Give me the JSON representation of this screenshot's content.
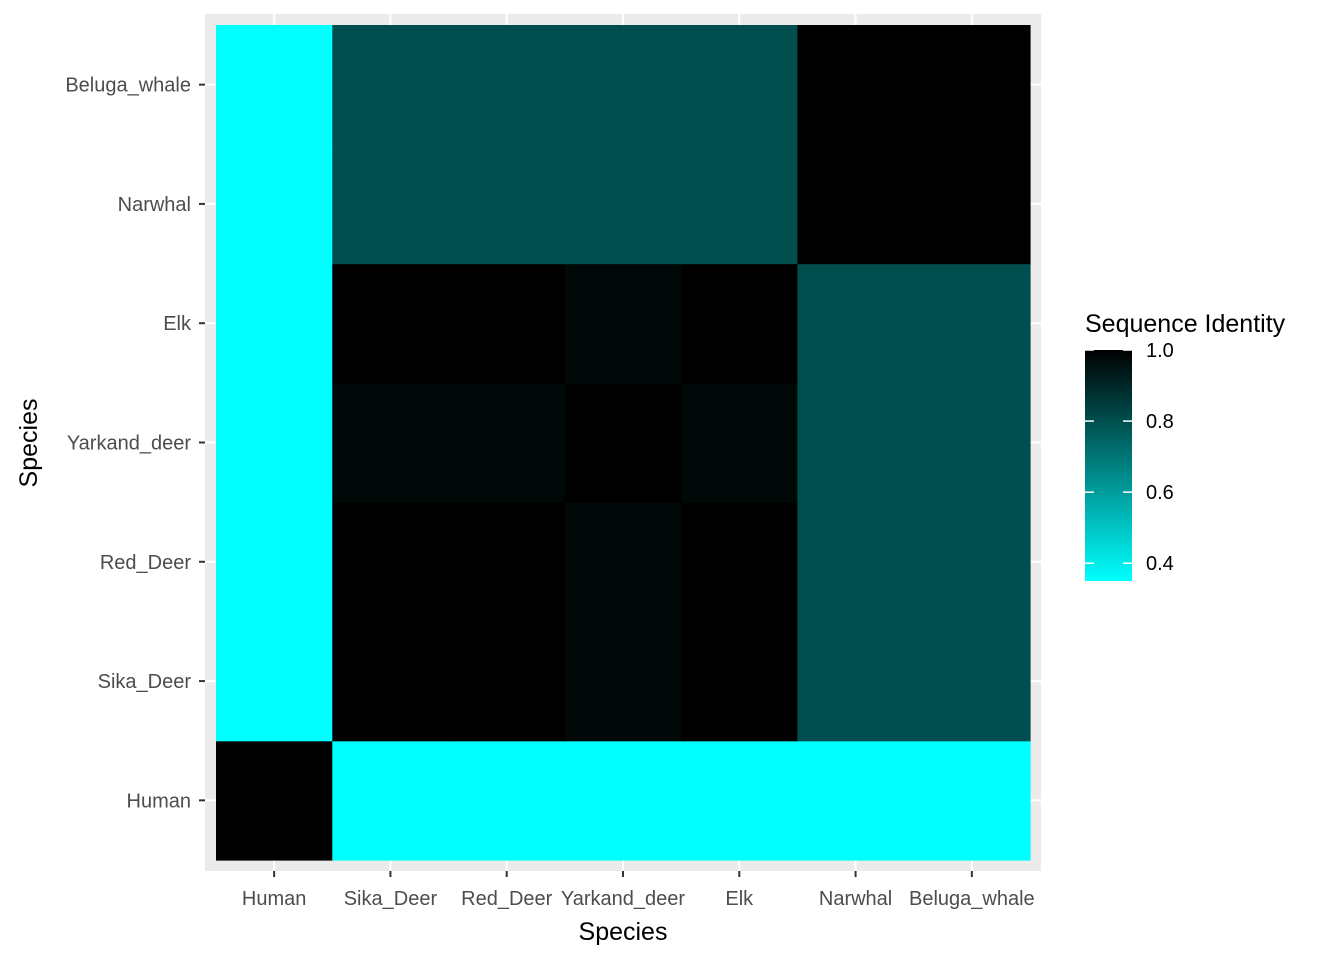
{
  "chart_data": {
    "type": "heatmap",
    "title": "",
    "xlabel": "Species",
    "ylabel": "Species",
    "x_categories": [
      "Human",
      "Sika_Deer",
      "Red_Deer",
      "Yarkand_deer",
      "Elk",
      "Narwhal",
      "Beluga_whale"
    ],
    "y_categories": [
      "Human",
      "Sika_Deer",
      "Red_Deer",
      "Yarkand_deer",
      "Elk",
      "Narwhal",
      "Beluga_whale"
    ],
    "values": [
      [
        1.0,
        0.35,
        0.35,
        0.35,
        0.35,
        0.35,
        0.35
      ],
      [
        0.35,
        1.0,
        1.0,
        0.98,
        1.0,
        0.8,
        0.8
      ],
      [
        0.35,
        1.0,
        1.0,
        0.98,
        1.0,
        0.8,
        0.8
      ],
      [
        0.35,
        0.98,
        0.98,
        1.0,
        0.98,
        0.8,
        0.8
      ],
      [
        0.35,
        1.0,
        1.0,
        0.98,
        1.0,
        0.8,
        0.8
      ],
      [
        0.35,
        0.8,
        0.8,
        0.8,
        0.8,
        1.0,
        1.0
      ],
      [
        0.35,
        0.8,
        0.8,
        0.8,
        0.8,
        1.0,
        1.0
      ]
    ],
    "legend": {
      "title": "Sequence Identity",
      "range": [
        0.35,
        1.0
      ],
      "ticks": [
        1.0,
        0.8,
        0.6,
        0.4
      ],
      "tick_labels": [
        "1.0",
        "0.8",
        "0.6",
        "0.4"
      ],
      "low_color": "#00FFFF",
      "high_color": "#000000",
      "placement": "right"
    },
    "panel_background": "#EBEBEB",
    "grid": true
  }
}
